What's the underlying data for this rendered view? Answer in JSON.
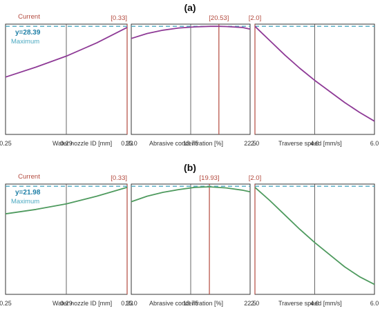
{
  "colors": {
    "purple": "#8e3a96",
    "green": "#4e9a5e",
    "cyan": "#4aa8c0",
    "red": "#b2483c",
    "axis": "#333333",
    "grid": "#555555"
  },
  "chart_data": [
    {
      "type": "line",
      "panel_label": "(a)",
      "current_label": "Current",
      "y_text": "y=28.39",
      "max_text": "Maximum",
      "series_color": "purple",
      "subplots": [
        {
          "xlabel": "Water nozzle ID  [mm]",
          "tick_labels": [
            "0.25",
            "0.29",
            "0.33"
          ],
          "tick_values": [
            0.25,
            0.29,
            0.33
          ],
          "xlim": [
            0.25,
            0.33
          ],
          "current_x": 0.33,
          "current_text": "[0.33]",
          "ylim": [
            0,
            1
          ],
          "x": [
            0.25,
            0.27,
            0.29,
            0.31,
            0.33
          ],
          "y": [
            0.52,
            0.61,
            0.71,
            0.83,
            0.97
          ]
        },
        {
          "xlabel": "Abrasive concentration  [%]",
          "tick_labels": [
            "15.0",
            "18.75",
            "22.5"
          ],
          "tick_values": [
            15.0,
            18.75,
            22.5
          ],
          "xlim": [
            15.0,
            22.5
          ],
          "current_x": 20.53,
          "current_text": "[20.53]",
          "ylim": [
            0,
            1
          ],
          "x": [
            15.0,
            16.0,
            17.0,
            18.0,
            19.0,
            20.0,
            20.53,
            21.0,
            22.0,
            22.5
          ],
          "y": [
            0.87,
            0.915,
            0.945,
            0.965,
            0.975,
            0.98,
            0.98,
            0.978,
            0.97,
            0.955
          ]
        },
        {
          "xlabel": "Traverse speed  [mm/s]",
          "tick_labels": [
            "2.0",
            "4.0",
            "6.0"
          ],
          "tick_values": [
            2.0,
            4.0,
            6.0
          ],
          "xlim": [
            2.0,
            6.0
          ],
          "current_x": 2.0,
          "current_text": "[2.0]",
          "ylim": [
            0,
            1
          ],
          "x": [
            2.0,
            2.5,
            3.0,
            3.5,
            4.0,
            4.5,
            5.0,
            5.5,
            6.0
          ],
          "y": [
            0.98,
            0.85,
            0.72,
            0.6,
            0.49,
            0.39,
            0.29,
            0.2,
            0.12
          ]
        }
      ]
    },
    {
      "type": "line",
      "panel_label": "(b)",
      "current_label": "Current",
      "y_text": "y=21.98",
      "max_text": "Maximum",
      "series_color": "green",
      "subplots": [
        {
          "xlabel": "Water nozzle ID  [mm]",
          "tick_labels": [
            "0.25",
            "0.29",
            "0.33"
          ],
          "tick_values": [
            0.25,
            0.29,
            0.33
          ],
          "xlim": [
            0.25,
            0.33
          ],
          "current_x": 0.33,
          "current_text": "[0.33]",
          "ylim": [
            0,
            1
          ],
          "x": [
            0.25,
            0.27,
            0.29,
            0.31,
            0.33
          ],
          "y": [
            0.73,
            0.77,
            0.82,
            0.89,
            0.97
          ]
        },
        {
          "xlabel": "Abrasive concentration  [%]",
          "tick_labels": [
            "15.0",
            "18.75",
            "22.5"
          ],
          "tick_values": [
            15.0,
            18.75,
            22.5
          ],
          "xlim": [
            15.0,
            22.5
          ],
          "current_x": 19.93,
          "current_text": "[19.93]",
          "ylim": [
            0,
            1
          ],
          "x": [
            15.0,
            16.0,
            17.0,
            18.0,
            19.0,
            19.93,
            21.0,
            22.0,
            22.5
          ],
          "y": [
            0.84,
            0.89,
            0.925,
            0.95,
            0.97,
            0.975,
            0.965,
            0.945,
            0.93
          ]
        },
        {
          "xlabel": "Traverse speed  [mm/s]",
          "tick_labels": [
            "2.0",
            "4.0",
            "6.0"
          ],
          "tick_values": [
            2.0,
            4.0,
            6.0
          ],
          "xlim": [
            2.0,
            6.0
          ],
          "current_x": 2.0,
          "current_text": "[2.0]",
          "ylim": [
            0,
            1
          ],
          "x": [
            2.0,
            2.5,
            3.0,
            3.5,
            4.0,
            4.5,
            5.0,
            5.5,
            6.0
          ],
          "y": [
            0.97,
            0.85,
            0.72,
            0.59,
            0.47,
            0.36,
            0.25,
            0.16,
            0.09
          ]
        }
      ]
    }
  ]
}
